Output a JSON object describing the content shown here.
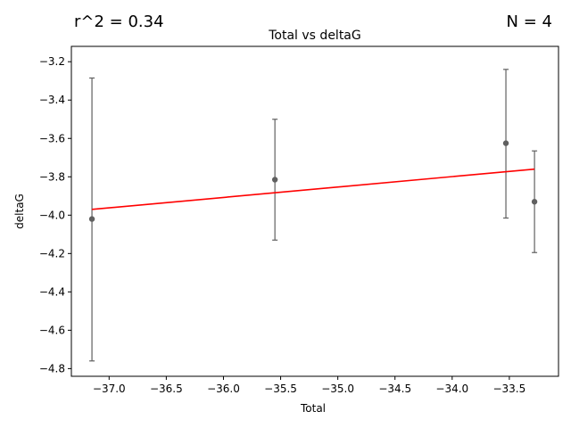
{
  "chart_data": {
    "type": "scatter",
    "title": "Total vs deltaG",
    "xlabel": "Total",
    "ylabel": "deltaG",
    "annotations": {
      "left": "r^2 = 0.34",
      "right": "N = 4"
    },
    "xlim": [
      -37.33,
      -33.07
    ],
    "ylim": [
      -4.84,
      -3.12
    ],
    "x_ticks": [
      -37.0,
      -36.5,
      -36.0,
      -35.5,
      -35.0,
      -34.5,
      -34.0,
      -33.5
    ],
    "x_tick_labels": [
      "−37.0",
      "−36.5",
      "−36.0",
      "−35.5",
      "−35.0",
      "−34.5",
      "−34.0",
      "−33.5"
    ],
    "y_ticks": [
      -4.8,
      -4.6,
      -4.4,
      -4.2,
      -4.0,
      -3.8,
      -3.6,
      -3.4,
      -3.2
    ],
    "y_tick_labels": [
      "−4.8",
      "−4.6",
      "−4.4",
      "−4.2",
      "−4.0",
      "−3.8",
      "−3.6",
      "−3.4",
      "−3.2"
    ],
    "points": [
      {
        "x": -37.15,
        "y": -4.02,
        "yerr_low": -4.76,
        "yerr_high": -3.285
      },
      {
        "x": -35.55,
        "y": -3.815,
        "yerr_low": -4.13,
        "yerr_high": -3.5
      },
      {
        "x": -33.53,
        "y": -3.625,
        "yerr_low": -4.015,
        "yerr_high": -3.24
      },
      {
        "x": -33.28,
        "y": -3.93,
        "yerr_low": -4.195,
        "yerr_high": -3.665
      }
    ],
    "fit_line": {
      "x": [
        -37.15,
        -33.28
      ],
      "y": [
        -3.97,
        -3.76
      ]
    },
    "colors": {
      "points": "#606060",
      "errorbars": "#606060",
      "fit_line": "#ff0000"
    },
    "grid": false,
    "legend": false
  }
}
